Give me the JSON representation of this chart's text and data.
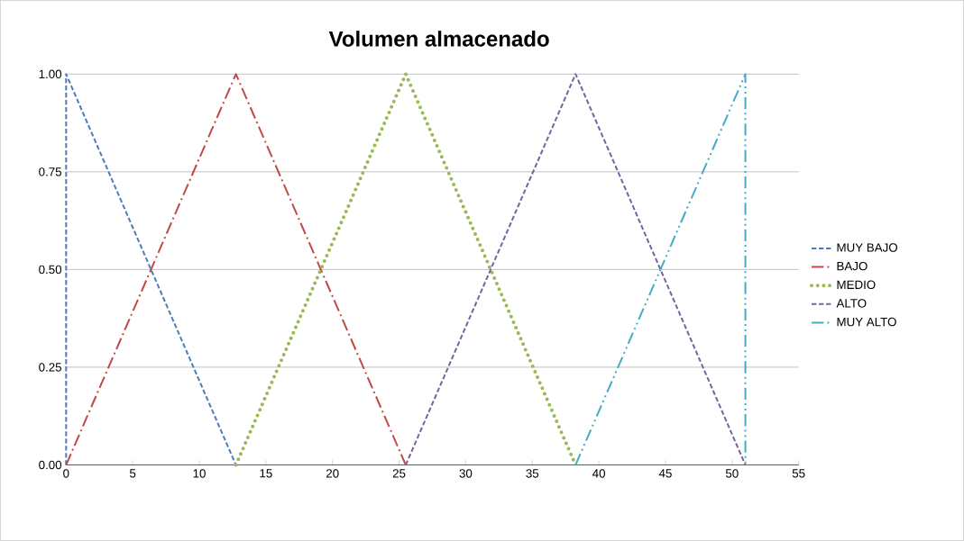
{
  "chart_data": {
    "type": "line",
    "title": "Volumen almacenado",
    "series": [
      {
        "name": "MUY BAJO",
        "color": "#4a7ebb",
        "line_style": "dashed",
        "x": [
          0,
          0,
          12.75
        ],
        "values": [
          0,
          1,
          0
        ]
      },
      {
        "name": "BAJO",
        "color": "#be4b48",
        "line_style": "dashdot",
        "x": [
          0,
          12.75,
          25.5
        ],
        "values": [
          0,
          1,
          0
        ]
      },
      {
        "name": "MEDIO",
        "color": "#98b954",
        "line_style": "dotted",
        "x": [
          12.75,
          25.5,
          38.25
        ],
        "values": [
          0,
          1,
          0
        ]
      },
      {
        "name": "ALTO",
        "color": "#7d60a0",
        "line_style": "dashed",
        "x": [
          25.5,
          38.25,
          51
        ],
        "values": [
          0,
          1,
          0
        ]
      },
      {
        "name": "MUY ALTO",
        "color": "#46aac5",
        "line_style": "dashdotdot",
        "x": [
          38.25,
          51,
          51
        ],
        "values": [
          0,
          1,
          0
        ]
      }
    ],
    "xlim": [
      0,
      55
    ],
    "xticks": [
      0,
      5,
      10,
      15,
      20,
      25,
      30,
      35,
      40,
      45,
      50,
      55
    ],
    "ylim": [
      0,
      1
    ],
    "yticks": [
      {
        "value": 0,
        "label": "0.00"
      },
      {
        "value": 0.25,
        "label": "0.25"
      },
      {
        "value": 0.5,
        "label": "0.50"
      },
      {
        "value": 0.75,
        "label": "0.75"
      },
      {
        "value": 1,
        "label": "1.00"
      }
    ],
    "grid": "y",
    "legend": "right",
    "marker": "none"
  }
}
